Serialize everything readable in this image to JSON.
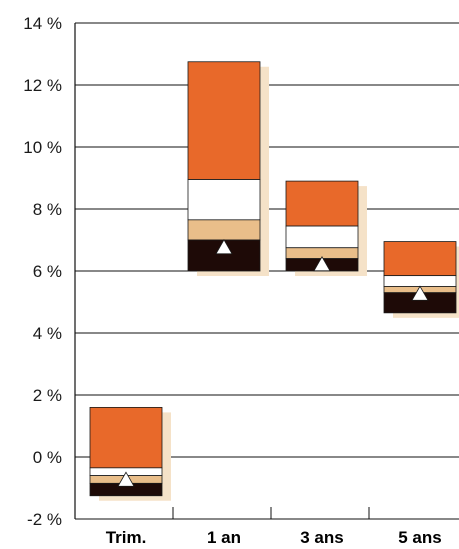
{
  "chart_data": {
    "type": "floating-bar",
    "title": "",
    "xlabel": "",
    "ylabel": "",
    "ylim": [
      -2,
      14
    ],
    "y_ticks": [
      {
        "value": -2,
        "label": "-2 %"
      },
      {
        "value": 0,
        "label": "0 %"
      },
      {
        "value": 2,
        "label": "2 %"
      },
      {
        "value": 4,
        "label": "4 %"
      },
      {
        "value": 6,
        "label": "6 %"
      },
      {
        "value": 8,
        "label": "8 %"
      },
      {
        "value": 10,
        "label": "10 %"
      },
      {
        "value": 12,
        "label": "12 %"
      },
      {
        "value": 14,
        "label": "14 %"
      }
    ],
    "grid": true,
    "categories": [
      "Trim.",
      "1 an",
      "3 ans",
      "5 ans"
    ],
    "segment_colors": {
      "top_range": "#E8692A",
      "upper_mid_range": "#FFFFFF",
      "lower_mid_range": "#E9BE8A",
      "bottom_range": "#1E0A07",
      "shadow": "#F5E2C8",
      "marker": "#FFFFFF"
    },
    "bars": [
      {
        "category": "Trim.",
        "bottom": -1.25,
        "lower_quartile": -0.85,
        "median": -0.6,
        "upper_quartile": -0.35,
        "top": 1.6,
        "marker": -0.75
      },
      {
        "category": "1 an",
        "bottom": 6.0,
        "lower_quartile": 7.0,
        "median": 7.65,
        "upper_quartile": 8.95,
        "top": 12.75,
        "marker": 6.75
      },
      {
        "category": "3 ans",
        "bottom": 6.0,
        "lower_quartile": 6.4,
        "median": 6.75,
        "upper_quartile": 7.45,
        "top": 8.9,
        "marker": 6.2
      },
      {
        "category": "5 ans",
        "bottom": 4.65,
        "lower_quartile": 5.3,
        "median": 5.5,
        "upper_quartile": 5.85,
        "top": 6.95,
        "marker": 5.25
      }
    ]
  }
}
